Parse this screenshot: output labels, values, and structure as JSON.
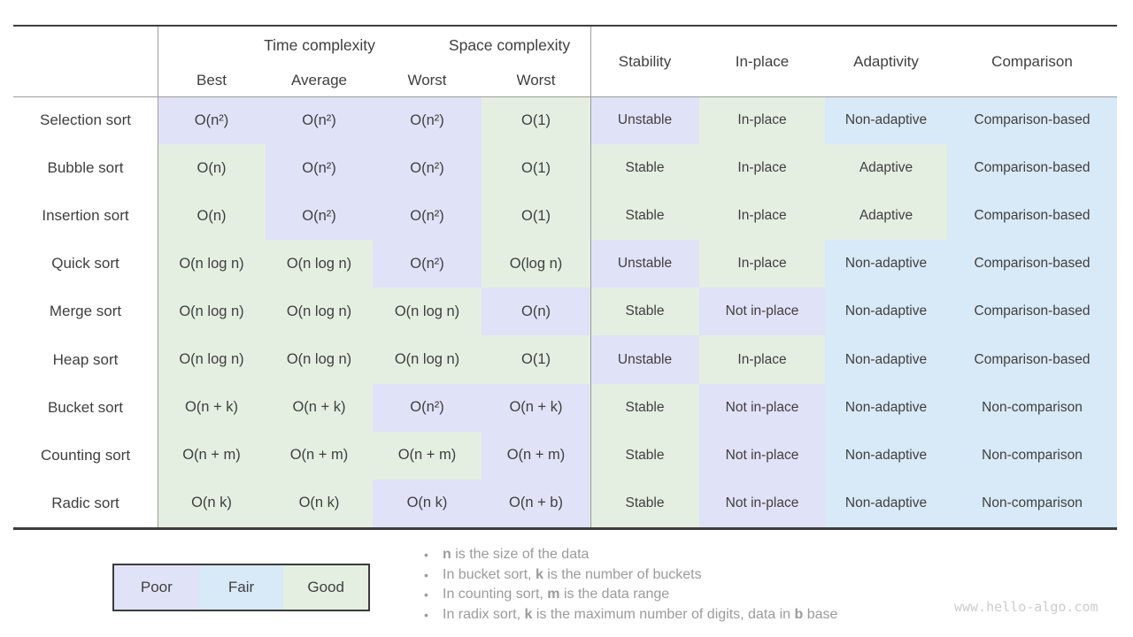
{
  "chart_data": {
    "type": "table",
    "column_groups": [
      {
        "label": "Time complexity"
      },
      {
        "label": "Space complexity"
      }
    ],
    "columns": [
      "Best",
      "Average",
      "Worst",
      "Worst",
      "Stability",
      "In-place",
      "Adaptivity",
      "Comparison"
    ],
    "rating_scale": [
      "Poor",
      "Fair",
      "Good"
    ],
    "rows": [
      {
        "label": "Selection sort",
        "cells": [
          {
            "text": "O(n²)",
            "rating": "poor"
          },
          {
            "text": "O(n²)",
            "rating": "poor"
          },
          {
            "text": "O(n²)",
            "rating": "poor"
          },
          {
            "text": "O(1)",
            "rating": "good"
          },
          {
            "text": "Unstable",
            "rating": "poor"
          },
          {
            "text": "In-place",
            "rating": "good"
          },
          {
            "text": "Non-adaptive",
            "rating": "fair"
          },
          {
            "text": "Comparison-based",
            "rating": "fair"
          }
        ]
      },
      {
        "label": "Bubble sort",
        "cells": [
          {
            "text": "O(n)",
            "rating": "good"
          },
          {
            "text": "O(n²)",
            "rating": "poor"
          },
          {
            "text": "O(n²)",
            "rating": "poor"
          },
          {
            "text": "O(1)",
            "rating": "good"
          },
          {
            "text": "Stable",
            "rating": "good"
          },
          {
            "text": "In-place",
            "rating": "good"
          },
          {
            "text": "Adaptive",
            "rating": "good"
          },
          {
            "text": "Comparison-based",
            "rating": "fair"
          }
        ]
      },
      {
        "label": "Insertion sort",
        "cells": [
          {
            "text": "O(n)",
            "rating": "good"
          },
          {
            "text": "O(n²)",
            "rating": "poor"
          },
          {
            "text": "O(n²)",
            "rating": "poor"
          },
          {
            "text": "O(1)",
            "rating": "good"
          },
          {
            "text": "Stable",
            "rating": "good"
          },
          {
            "text": "In-place",
            "rating": "good"
          },
          {
            "text": "Adaptive",
            "rating": "good"
          },
          {
            "text": "Comparison-based",
            "rating": "fair"
          }
        ]
      },
      {
        "label": "Quick sort",
        "cells": [
          {
            "text": "O(n log n)",
            "rating": "good"
          },
          {
            "text": "O(n log n)",
            "rating": "good"
          },
          {
            "text": "O(n²)",
            "rating": "poor"
          },
          {
            "text": "O(log n)",
            "rating": "good"
          },
          {
            "text": "Unstable",
            "rating": "poor"
          },
          {
            "text": "In-place",
            "rating": "good"
          },
          {
            "text": "Non-adaptive",
            "rating": "fair"
          },
          {
            "text": "Comparison-based",
            "rating": "fair"
          }
        ]
      },
      {
        "label": "Merge sort",
        "cells": [
          {
            "text": "O(n log n)",
            "rating": "good"
          },
          {
            "text": "O(n log n)",
            "rating": "good"
          },
          {
            "text": "O(n log n)",
            "rating": "good"
          },
          {
            "text": "O(n)",
            "rating": "poor"
          },
          {
            "text": "Stable",
            "rating": "good"
          },
          {
            "text": "Not in-place",
            "rating": "poor"
          },
          {
            "text": "Non-adaptive",
            "rating": "fair"
          },
          {
            "text": "Comparison-based",
            "rating": "fair"
          }
        ]
      },
      {
        "label": "Heap sort",
        "cells": [
          {
            "text": "O(n log n)",
            "rating": "good"
          },
          {
            "text": "O(n log n)",
            "rating": "good"
          },
          {
            "text": "O(n log n)",
            "rating": "good"
          },
          {
            "text": "O(1)",
            "rating": "good"
          },
          {
            "text": "Unstable",
            "rating": "poor"
          },
          {
            "text": "In-place",
            "rating": "good"
          },
          {
            "text": "Non-adaptive",
            "rating": "fair"
          },
          {
            "text": "Comparison-based",
            "rating": "fair"
          }
        ]
      },
      {
        "label": "Bucket sort",
        "cells": [
          {
            "text": "O(n + k)",
            "rating": "good"
          },
          {
            "text": "O(n + k)",
            "rating": "good"
          },
          {
            "text": "O(n²)",
            "rating": "poor"
          },
          {
            "text": "O(n + k)",
            "rating": "poor"
          },
          {
            "text": "Stable",
            "rating": "good"
          },
          {
            "text": "Not in-place",
            "rating": "poor"
          },
          {
            "text": "Non-adaptive",
            "rating": "fair"
          },
          {
            "text": "Non-comparison",
            "rating": "fair"
          }
        ]
      },
      {
        "label": "Counting sort",
        "cells": [
          {
            "text": "O(n + m)",
            "rating": "good"
          },
          {
            "text": "O(n + m)",
            "rating": "good"
          },
          {
            "text": "O(n + m)",
            "rating": "good"
          },
          {
            "text": "O(n + m)",
            "rating": "poor"
          },
          {
            "text": "Stable",
            "rating": "good"
          },
          {
            "text": "Not in-place",
            "rating": "poor"
          },
          {
            "text": "Non-adaptive",
            "rating": "fair"
          },
          {
            "text": "Non-comparison",
            "rating": "fair"
          }
        ]
      },
      {
        "label": "Radic sort",
        "cells": [
          {
            "text": "O(n k)",
            "rating": "good"
          },
          {
            "text": "O(n k)",
            "rating": "good"
          },
          {
            "text": "O(n k)",
            "rating": "poor"
          },
          {
            "text": "O(n + b)",
            "rating": "poor"
          },
          {
            "text": "Stable",
            "rating": "good"
          },
          {
            "text": "Not in-place",
            "rating": "poor"
          },
          {
            "text": "Non-adaptive",
            "rating": "fair"
          },
          {
            "text": "Non-comparison",
            "rating": "fair"
          }
        ]
      }
    ]
  },
  "legend": {
    "items": [
      {
        "label": "Poor",
        "rating": "poor"
      },
      {
        "label": "Fair",
        "rating": "fair"
      },
      {
        "label": "Good",
        "rating": "good"
      }
    ]
  },
  "notes": [
    {
      "segments": [
        {
          "text": "n",
          "bold": true
        },
        {
          "text": " is the size of the data",
          "bold": false
        }
      ]
    },
    {
      "segments": [
        {
          "text": "In bucket sort, ",
          "bold": false
        },
        {
          "text": "k",
          "bold": true
        },
        {
          "text": " is the number of buckets",
          "bold": false
        }
      ]
    },
    {
      "segments": [
        {
          "text": "In counting sort, ",
          "bold": false
        },
        {
          "text": "m",
          "bold": true
        },
        {
          "text": " is the data range",
          "bold": false
        }
      ]
    },
    {
      "segments": [
        {
          "text": "In radix sort, ",
          "bold": false
        },
        {
          "text": "k",
          "bold": true
        },
        {
          "text": " is the maximum number of digits, data in ",
          "bold": false
        },
        {
          "text": "b",
          "bold": true
        },
        {
          "text": " base",
          "bold": false
        }
      ]
    }
  ],
  "watermark": "www.hello-algo.com",
  "colors": {
    "poor": "#e0e2f7",
    "fair": "#d8e9f7",
    "good": "#e4efe1",
    "border_dark": "#3d3d3d",
    "border_light": "#9c9c9c",
    "text": "#3f3f3f",
    "notes_text": "#9b9b9b",
    "watermark_text": "#cccccc"
  }
}
